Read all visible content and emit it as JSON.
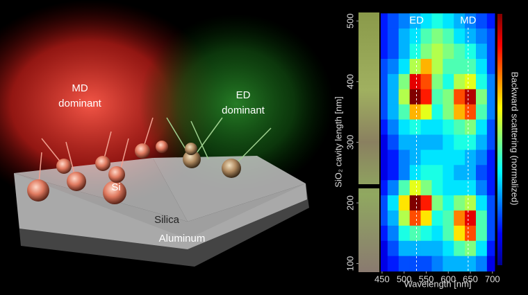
{
  "illustration": {
    "md_label": {
      "line1": "MD",
      "line2": "dominant"
    },
    "ed_label": {
      "line1": "ED",
      "line2": "dominant"
    },
    "particle_label": "Si",
    "silica_label": "Silica",
    "aluminum_label": "Aluminum"
  },
  "chart_data": {
    "type": "heatmap",
    "colormap": "jet",
    "xlabel": "Wavelength [nm]",
    "ylabel": "SiO₂ cavity length [nm]",
    "colorbar_label": "Backward scattering (normalized)",
    "x": [
      450,
      475,
      500,
      525,
      550,
      575,
      600,
      625,
      650,
      675,
      700
    ],
    "y": [
      500,
      475,
      450,
      425,
      400,
      375,
      350,
      325,
      300,
      275,
      250,
      225,
      200,
      175,
      150,
      125,
      100
    ],
    "values": [
      [
        0.15,
        0.2,
        0.25,
        0.3,
        0.35,
        0.4,
        0.35,
        0.3,
        0.25,
        0.2,
        0.15
      ],
      [
        0.15,
        0.2,
        0.3,
        0.35,
        0.45,
        0.5,
        0.45,
        0.35,
        0.3,
        0.25,
        0.2
      ],
      [
        0.15,
        0.2,
        0.3,
        0.4,
        0.5,
        0.55,
        0.5,
        0.45,
        0.4,
        0.3,
        0.2
      ],
      [
        0.2,
        0.25,
        0.35,
        0.55,
        0.7,
        0.55,
        0.45,
        0.45,
        0.45,
        0.35,
        0.2
      ],
      [
        0.2,
        0.3,
        0.5,
        0.9,
        0.8,
        0.5,
        0.4,
        0.55,
        0.6,
        0.4,
        0.25
      ],
      [
        0.2,
        0.3,
        0.55,
        1.0,
        0.85,
        0.45,
        0.5,
        0.8,
        0.95,
        0.5,
        0.25
      ],
      [
        0.2,
        0.3,
        0.45,
        0.7,
        0.6,
        0.4,
        0.5,
        0.7,
        0.8,
        0.45,
        0.25
      ],
      [
        0.15,
        0.25,
        0.35,
        0.4,
        0.35,
        0.35,
        0.4,
        0.45,
        0.5,
        0.35,
        0.2
      ],
      [
        0.1,
        0.2,
        0.3,
        0.3,
        0.3,
        0.3,
        0.35,
        0.4,
        0.4,
        0.3,
        0.2
      ],
      [
        0.1,
        0.15,
        0.25,
        0.3,
        0.35,
        0.35,
        0.35,
        0.35,
        0.3,
        0.25,
        0.15
      ],
      [
        0.1,
        0.15,
        0.25,
        0.35,
        0.4,
        0.4,
        0.35,
        0.3,
        0.3,
        0.2,
        0.15
      ],
      [
        0.15,
        0.25,
        0.45,
        0.6,
        0.5,
        0.4,
        0.35,
        0.35,
        0.35,
        0.25,
        0.15
      ],
      [
        0.2,
        0.35,
        0.65,
        1.0,
        0.85,
        0.5,
        0.4,
        0.5,
        0.55,
        0.35,
        0.2
      ],
      [
        0.2,
        0.3,
        0.55,
        0.8,
        0.65,
        0.4,
        0.45,
        0.75,
        0.9,
        0.45,
        0.2
      ],
      [
        0.15,
        0.25,
        0.4,
        0.45,
        0.4,
        0.35,
        0.45,
        0.65,
        0.8,
        0.45,
        0.2
      ],
      [
        0.1,
        0.2,
        0.3,
        0.3,
        0.3,
        0.3,
        0.35,
        0.45,
        0.5,
        0.35,
        0.15
      ],
      [
        0.1,
        0.15,
        0.2,
        0.2,
        0.2,
        0.25,
        0.3,
        0.3,
        0.3,
        0.25,
        0.1
      ]
    ],
    "xlim": [
      447,
      705
    ],
    "ylim": [
      87,
      514
    ],
    "xticks": [
      450,
      500,
      550,
      600,
      650,
      700
    ],
    "yticks": [
      100,
      200,
      300,
      400,
      500
    ],
    "annotations": [
      {
        "text": "ED",
        "x": 528
      },
      {
        "text": "MD",
        "x": 645
      }
    ]
  }
}
